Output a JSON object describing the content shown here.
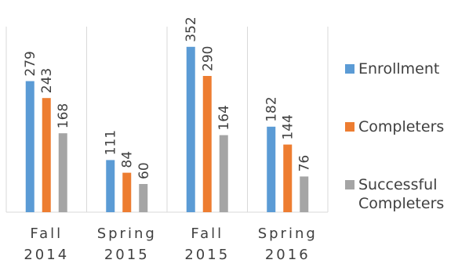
{
  "colors": {
    "enrollment": "#5B9BD5",
    "completers": "#ED7D31",
    "successful": "#A5A5A5",
    "axis": "#D9D9D9",
    "text": "#404040"
  },
  "chart_data": {
    "type": "bar",
    "title": "",
    "xlabel": "",
    "ylabel": "",
    "ylim": [
      0,
      380
    ],
    "grid": false,
    "legend_position": "right",
    "categories": [
      {
        "line1": "Fall",
        "line2": "2014"
      },
      {
        "line1": "Spring",
        "line2": "2015"
      },
      {
        "line1": "Fall",
        "line2": "2015"
      },
      {
        "line1": "Spring",
        "line2": "2016"
      }
    ],
    "series": [
      {
        "name": "Enrollment",
        "color": "#5B9BD5",
        "values": [
          279,
          111,
          352,
          182
        ]
      },
      {
        "name": "Completers",
        "color": "#ED7D31",
        "values": [
          243,
          84,
          290,
          144
        ]
      },
      {
        "name": "Successful Completers",
        "color": "#A5A5A5",
        "values": [
          168,
          60,
          164,
          76
        ]
      }
    ],
    "data_labels": true
  },
  "legend": {
    "items": [
      {
        "label": "Enrollment",
        "color": "#5B9BD5"
      },
      {
        "label": "Completers",
        "color": "#ED7D31"
      },
      {
        "label": "Successful\nCompleters",
        "color": "#A5A5A5"
      }
    ]
  }
}
